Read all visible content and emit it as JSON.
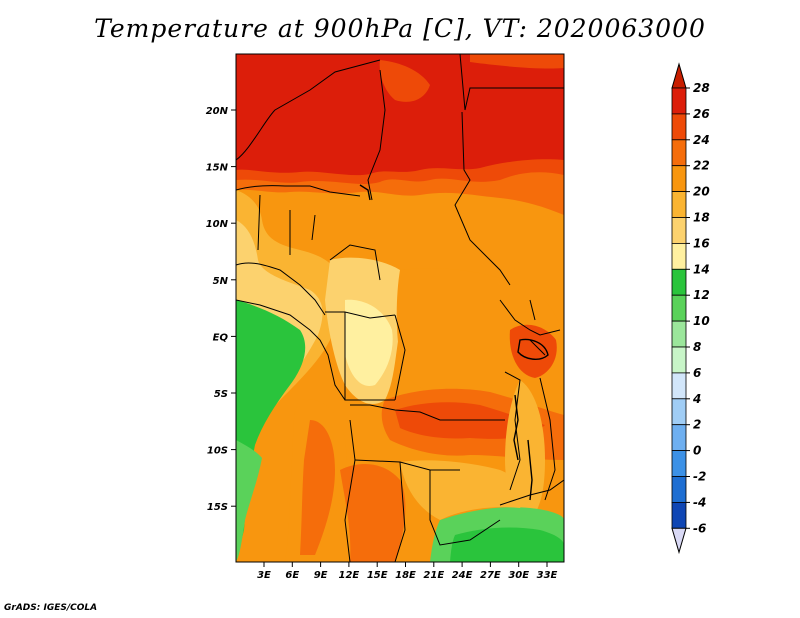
{
  "title": "Temperature at 900hPa [C], VT: 2020063000",
  "credit": "GrADS: IGES/COLA",
  "map": {
    "lat_labels": [
      "20N",
      "15N",
      "10N",
      "5N",
      "EQ",
      "5S",
      "10S",
      "15S"
    ],
    "lon_labels": [
      "3E",
      "6E",
      "9E",
      "12E",
      "15E",
      "18E",
      "21E",
      "24E",
      "27E",
      "30E",
      "33E"
    ]
  },
  "colorbar": {
    "labels": [
      "28",
      "26",
      "24",
      "22",
      "20",
      "18",
      "16",
      "14",
      "12",
      "10",
      "8",
      "6",
      "4",
      "2",
      "0",
      "-2",
      "-4",
      "-6"
    ],
    "colors": [
      "#dc1e0a",
      "#ee4a08",
      "#f56d0b",
      "#f8960f",
      "#fab432",
      "#fcd26e",
      "#fff0a0",
      "#2ac43c",
      "#5ad25a",
      "#9be69b",
      "#c8f5c8",
      "#d2e6fa",
      "#a0cdf5",
      "#6eaff0",
      "#3c91e6",
      "#1e6ed2",
      "#0f46b4",
      "#0a1e8c",
      "#05066e",
      "#dcdcf5"
    ],
    "over_color": "#c81e00",
    "under_color": "#d9d9f5"
  }
}
